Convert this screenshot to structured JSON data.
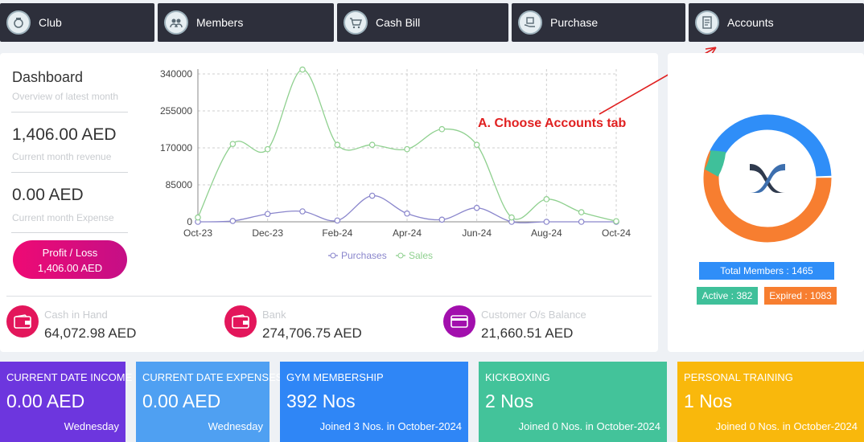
{
  "nav": [
    {
      "label": "Club",
      "icon": "club-icon"
    },
    {
      "label": "Members",
      "icon": "members-icon"
    },
    {
      "label": "Cash Bill",
      "icon": "cash-bill-icon"
    },
    {
      "label": "Purchase",
      "icon": "purchase-icon"
    },
    {
      "label": "Accounts",
      "icon": "accounts-icon"
    }
  ],
  "dashboard": {
    "title": "Dashboard",
    "subtitle": "Overview of latest month",
    "revenue_value": "1,406.00 AED",
    "revenue_label": "Current month revenue",
    "expense_value": "0.00 AED",
    "expense_label": "Current month Expense",
    "profit_label": "Profit / Loss",
    "profit_value": "1,406.00 AED"
  },
  "chart_data": {
    "type": "line",
    "x": [
      "Oct-23",
      "Nov-23",
      "Dec-23",
      "Jan-24",
      "Feb-24",
      "Mar-24",
      "Apr-24",
      "May-24",
      "Jun-24",
      "Jul-24",
      "Aug-24",
      "Sep-24",
      "Oct-24"
    ],
    "x_tick_labels": [
      "Oct-23",
      "Dec-23",
      "Feb-24",
      "Apr-24",
      "Jun-24",
      "Aug-24",
      "Oct-24"
    ],
    "y_ticks": [
      0,
      85000,
      170000,
      255000,
      340000
    ],
    "y_tick_labels": [
      "0",
      "85000",
      "170000",
      "255000",
      "340000"
    ],
    "ylim": [
      0,
      340000
    ],
    "series": [
      {
        "name": "Purchases",
        "color": "#8a86cc",
        "values": [
          0,
          2000,
          18000,
          24000,
          3000,
          60000,
          19000,
          5000,
          32000,
          0,
          0,
          0,
          0
        ]
      },
      {
        "name": "Sales",
        "color": "#8fd08f",
        "values": [
          10000,
          179000,
          167000,
          350000,
          177000,
          177000,
          167000,
          213000,
          177000,
          10000,
          52000,
          22000,
          1400
        ]
      }
    ],
    "legend_position": "bottom",
    "grid": true
  },
  "stats": [
    {
      "label": "Cash in Hand",
      "value": "64,072.98 AED",
      "icon": "wallet-icon",
      "color": "#e3165b"
    },
    {
      "label": "Bank",
      "value": "274,706.75 AED",
      "icon": "wallet-icon",
      "color": "#e3165b"
    },
    {
      "label": "Customer O/s Balance",
      "value": "21,660.51 AED",
      "icon": "card-icon",
      "color": "#a20fad"
    }
  ],
  "annotation": "A. Choose Accounts tab",
  "members": {
    "total": "Total Members : 1465",
    "active": "Active : 382",
    "expired": "Expired : 1083",
    "active_count": 382,
    "expired_count": 1083,
    "colors": {
      "total": "#2f8ef8",
      "active": "#3fc09a",
      "expired": "#f77e30"
    }
  },
  "cards": [
    {
      "title": "CURRENT DATE INCOME",
      "value": "0.00 AED",
      "footer": "Wednesday",
      "color": "#6d36de"
    },
    {
      "title": "CURRENT DATE EXPENSES",
      "value": "0.00 AED",
      "footer": "Wednesday",
      "color": "#4fa0f2"
    },
    {
      "title": "GYM MEMBERSHIP",
      "value": "392 Nos",
      "footer": "Joined 3 Nos. in October-2024",
      "color": "#2f86f6"
    },
    {
      "title": "KICKBOXING",
      "value": "2 Nos",
      "footer": "Joined 0 Nos. in October-2024",
      "color": "#43c39a"
    },
    {
      "title": "PERSONAL TRAINING",
      "value": "1 Nos",
      "footer": "Joined 0 Nos. in October-2024",
      "color": "#f9b80c"
    }
  ]
}
